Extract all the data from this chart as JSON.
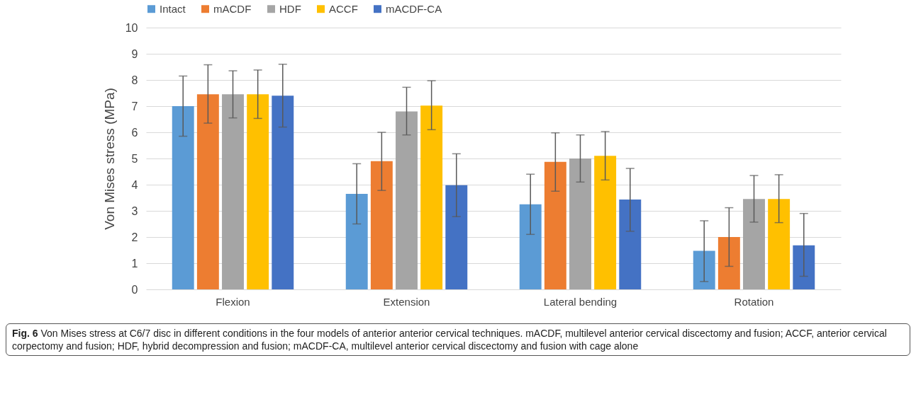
{
  "chart_data": {
    "type": "bar",
    "ylabel": "Von Mises stress (MPa)",
    "categories": [
      "Flexion",
      "Extension",
      "Lateral bending",
      "Rotation"
    ],
    "series": [
      {
        "name": "Intact",
        "color": "#5b9bd5",
        "values": [
          7.0,
          3.65,
          3.25,
          1.47
        ],
        "errors": [
          [
            5.85,
            8.15
          ],
          [
            2.5,
            4.8
          ],
          [
            2.1,
            4.4
          ],
          [
            0.3,
            2.62
          ]
        ]
      },
      {
        "name": "mACDF",
        "color": "#ed7d31",
        "values": [
          7.45,
          4.9,
          4.87,
          2.0
        ],
        "errors": [
          [
            6.35,
            8.58
          ],
          [
            3.78,
            6.0
          ],
          [
            3.75,
            5.98
          ],
          [
            0.88,
            3.12
          ]
        ]
      },
      {
        "name": "HDF",
        "color": "#a5a5a5",
        "values": [
          7.45,
          6.8,
          5.0,
          3.45
        ],
        "errors": [
          [
            6.55,
            8.35
          ],
          [
            5.9,
            7.72
          ],
          [
            4.1,
            5.9
          ],
          [
            2.57,
            4.35
          ]
        ]
      },
      {
        "name": "ACCF",
        "color": "#ffc000",
        "values": [
          7.45,
          7.02,
          5.1,
          3.45
        ],
        "errors": [
          [
            6.53,
            8.38
          ],
          [
            6.1,
            7.97
          ],
          [
            4.18,
            6.03
          ],
          [
            2.55,
            4.38
          ]
        ]
      },
      {
        "name": "mACDF-CA",
        "color": "#4472c4",
        "values": [
          7.4,
          3.98,
          3.43,
          1.68
        ],
        "errors": [
          [
            6.2,
            8.6
          ],
          [
            2.78,
            5.18
          ],
          [
            2.22,
            4.62
          ],
          [
            0.5,
            2.9
          ]
        ]
      }
    ],
    "ylim": [
      0,
      10
    ],
    "yticks": [
      0,
      1,
      2,
      3,
      4,
      5,
      6,
      7,
      8,
      9,
      10
    ],
    "grid": "y",
    "legend": "top",
    "annotations": [
      "Fig. 6 Von Mises stress at C6/7 disc in different conditions in the four models of anterior anterior cervical techniques. mACDF, multilevel anterior cervical discectomy and fusion; ACCF, anterior cervical corpectomy and fusion; HDF, hybrid decompression and fusion; mACDF-CA, multilevel anterior cervical discectomy and fusion with cage alone"
    ]
  }
}
